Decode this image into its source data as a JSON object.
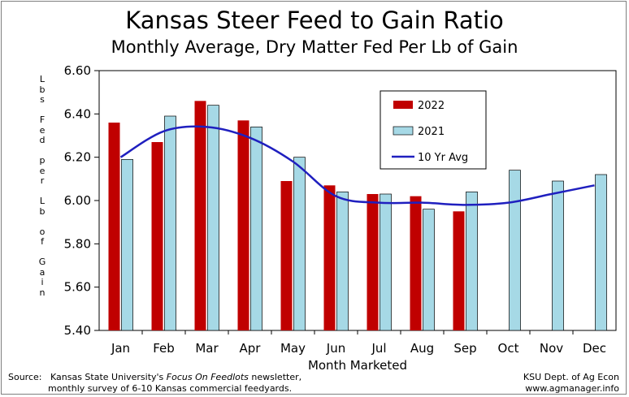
{
  "chart_data": {
    "type": "bar",
    "title": "Kansas Steer Feed to Gain Ratio",
    "subtitle": "Monthly Average, Dry Matter Fed Per Lb of Gain",
    "xlabel": "Month Marketed",
    "ylabel": "Lbs Fed per Lb of Gain",
    "ylim": [
      5.4,
      6.6
    ],
    "yticks": [
      "5.40",
      "5.60",
      "5.80",
      "6.00",
      "6.20",
      "6.40",
      "6.60"
    ],
    "categories": [
      "Jan",
      "Feb",
      "Mar",
      "Apr",
      "May",
      "Jun",
      "Jul",
      "Aug",
      "Sep",
      "Oct",
      "Nov",
      "Dec"
    ],
    "series": [
      {
        "name": "2022",
        "kind": "bar",
        "color": "#c00000",
        "values": [
          6.36,
          6.27,
          6.46,
          6.37,
          6.09,
          6.07,
          6.03,
          6.02,
          5.95,
          null,
          null,
          null
        ]
      },
      {
        "name": "2021",
        "kind": "bar",
        "color": "#a6d9e6",
        "values": [
          6.19,
          6.39,
          6.44,
          6.34,
          6.2,
          6.04,
          6.03,
          5.96,
          6.04,
          6.14,
          6.09,
          6.12
        ]
      },
      {
        "name": "10 Yr Avg",
        "kind": "line",
        "color": "#1f1fbf",
        "values": [
          6.2,
          6.32,
          6.34,
          6.29,
          6.18,
          6.02,
          5.99,
          5.99,
          5.98,
          5.99,
          6.03,
          6.07
        ]
      }
    ],
    "legend_position": "top-right",
    "grid": false
  },
  "footer": {
    "source_label": "Source:",
    "source_prefix": "Kansas State University's ",
    "source_italic": "Focus On Feedlots",
    "source_suffix": " newsletter,",
    "source_line2": "monthly survey of 6-10 Kansas commercial feedyards.",
    "credit_line1": "KSU Dept. of Ag Econ",
    "credit_line2": "www.agmanager.info"
  }
}
